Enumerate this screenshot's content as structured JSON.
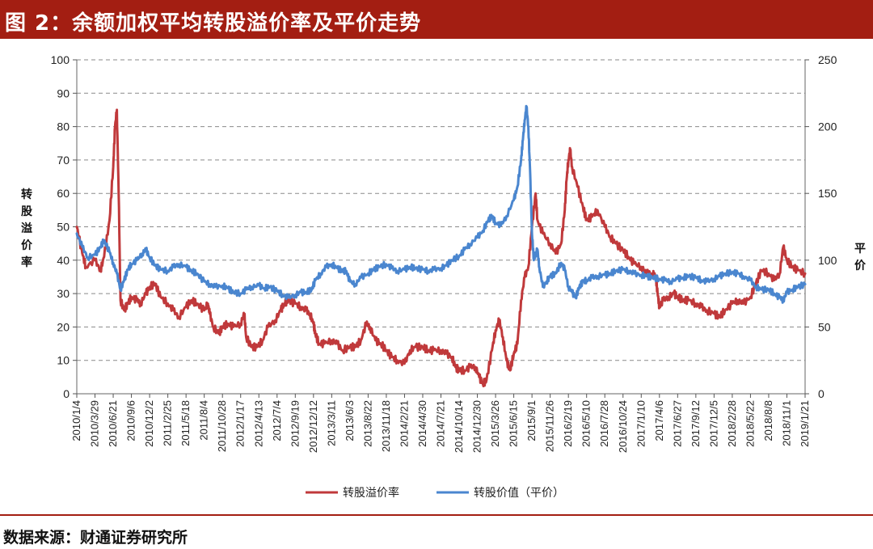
{
  "header": {
    "title": "图 2：余额加权平均转股溢价率及平价走势"
  },
  "footer": {
    "source": "数据来源：财通证券研究所"
  },
  "chart_data": {
    "type": "line",
    "title": "",
    "y_left": {
      "label": [
        "转",
        "股",
        "溢",
        "价",
        "率"
      ],
      "min": 0,
      "max": 100,
      "ticks": [
        "0",
        "10",
        "20",
        "30",
        "40",
        "50",
        "60",
        "70",
        "80",
        "90",
        "100"
      ]
    },
    "y_right": {
      "label": [
        "平",
        "价"
      ],
      "min": 0,
      "max": 250,
      "ticks": [
        "0",
        "50",
        "100",
        "150",
        "200",
        "250"
      ]
    },
    "grid": "horizontal-dashed",
    "legend_position": "bottom",
    "x_ticks": [
      "2010/1/4",
      "2010/3/29",
      "2010/6/21",
      "2010/9/6",
      "2010/12/2",
      "2011/2/25",
      "2011/5/18",
      "2011/8/4",
      "2011/10/28",
      "2012/1/17",
      "2012/4/13",
      "2012/7/4",
      "2012/9/19",
      "2012/12/12",
      "2013/3/11",
      "2013/6/3",
      "2013/8/22",
      "2013/11/18",
      "2014/2/21",
      "2014/4/30",
      "2014/7/21",
      "2014/10/14",
      "2014/12/30",
      "2015/3/26",
      "2015/6/15",
      "2015/9/1",
      "2015/11/26",
      "2016/2/19",
      "2016/5/10",
      "2016/7/28",
      "2016/10/24",
      "2017/1/10",
      "2017/4/6",
      "2017/6/27",
      "2017/9/12",
      "2017/12/5",
      "2018/2/28",
      "2018/5/22",
      "2018/8/8",
      "2018/11/1",
      "2019/1/21"
    ],
    "series": [
      {
        "name": "转股溢价率",
        "axis": "left",
        "color": "#c0393b",
        "points": [
          [
            0,
            50
          ],
          [
            0.3,
            42
          ],
          [
            0.5,
            38
          ],
          [
            1,
            40
          ],
          [
            1.3,
            37
          ],
          [
            1.5,
            41
          ],
          [
            1.8,
            52
          ],
          [
            2,
            68
          ],
          [
            2.1,
            80
          ],
          [
            2.2,
            85
          ],
          [
            2.3,
            60
          ],
          [
            2.4,
            28
          ],
          [
            2.6,
            25
          ],
          [
            2.8,
            27
          ],
          [
            3,
            29
          ],
          [
            3.3,
            28
          ],
          [
            3.5,
            27
          ],
          [
            3.8,
            30
          ],
          [
            4,
            32
          ],
          [
            4.3,
            33
          ],
          [
            4.6,
            29
          ],
          [
            5,
            27
          ],
          [
            5.3,
            25
          ],
          [
            5.6,
            23
          ],
          [
            6,
            26
          ],
          [
            6.3,
            28
          ],
          [
            6.6,
            27
          ],
          [
            7,
            25
          ],
          [
            7.2,
            27
          ],
          [
            7.3,
            24
          ],
          [
            7.5,
            20
          ],
          [
            7.8,
            18
          ],
          [
            8,
            20
          ],
          [
            8.3,
            21
          ],
          [
            8.6,
            20
          ],
          [
            9,
            21
          ],
          [
            9.2,
            24
          ],
          [
            9.3,
            17
          ],
          [
            9.6,
            14
          ],
          [
            9.9,
            14
          ],
          [
            10.2,
            16
          ],
          [
            10.5,
            20
          ],
          [
            10.9,
            22
          ],
          [
            11.2,
            25
          ],
          [
            11.4,
            27
          ],
          [
            11.6,
            28
          ],
          [
            12,
            27
          ],
          [
            12.3,
            26
          ],
          [
            12.6,
            25
          ],
          [
            12.8,
            24
          ],
          [
            13,
            21
          ],
          [
            13.1,
            18
          ],
          [
            13.3,
            15
          ],
          [
            13.6,
            15
          ],
          [
            14,
            16
          ],
          [
            14.3,
            15
          ],
          [
            14.6,
            13
          ],
          [
            15,
            14
          ],
          [
            15.3,
            14
          ],
          [
            15.6,
            16
          ],
          [
            15.9,
            21
          ],
          [
            16.1,
            20
          ],
          [
            16.4,
            16
          ],
          [
            16.7,
            15
          ],
          [
            17,
            13
          ],
          [
            17.3,
            11
          ],
          [
            17.6,
            10
          ],
          [
            18,
            9
          ],
          [
            18.3,
            13
          ],
          [
            18.6,
            14
          ],
          [
            19,
            14
          ],
          [
            19.3,
            13
          ],
          [
            19.6,
            13
          ],
          [
            20,
            13
          ],
          [
            20.3,
            12
          ],
          [
            20.6,
            11
          ],
          [
            20.8,
            8
          ],
          [
            21,
            7
          ],
          [
            21.3,
            7
          ],
          [
            21.6,
            8
          ],
          [
            21.9,
            8
          ],
          [
            22.1,
            5
          ],
          [
            22.3,
            3
          ],
          [
            22.5,
            4
          ],
          [
            22.8,
            13
          ],
          [
            23,
            19
          ],
          [
            23.2,
            22
          ],
          [
            23.4,
            17
          ],
          [
            23.6,
            10
          ],
          [
            23.8,
            7
          ],
          [
            24,
            12
          ],
          [
            24.2,
            15
          ],
          [
            24.4,
            28
          ],
          [
            24.6,
            35
          ],
          [
            24.8,
            38
          ],
          [
            25,
            50
          ],
          [
            25.2,
            60
          ],
          [
            25.3,
            52
          ],
          [
            25.6,
            48
          ],
          [
            26,
            45
          ],
          [
            26.3,
            42
          ],
          [
            26.6,
            45
          ],
          [
            26.8,
            55
          ],
          [
            26.9,
            64
          ],
          [
            27,
            70
          ],
          [
            27.1,
            73
          ],
          [
            27.2,
            68
          ],
          [
            27.5,
            62
          ],
          [
            27.8,
            56
          ],
          [
            28,
            52
          ],
          [
            28.3,
            53
          ],
          [
            28.6,
            55
          ],
          [
            29,
            50
          ],
          [
            29.3,
            47
          ],
          [
            29.6,
            45
          ],
          [
            30,
            43
          ],
          [
            30.3,
            41
          ],
          [
            30.6,
            39
          ],
          [
            31,
            38
          ],
          [
            31.3,
            36
          ],
          [
            31.6,
            36
          ],
          [
            31.8,
            35
          ],
          [
            31.9,
            30
          ],
          [
            32,
            26
          ],
          [
            32.2,
            28
          ],
          [
            32.5,
            29
          ],
          [
            32.8,
            30
          ],
          [
            33,
            29
          ],
          [
            33.3,
            28
          ],
          [
            33.6,
            28
          ],
          [
            34,
            27
          ],
          [
            34.3,
            26
          ],
          [
            34.6,
            25
          ],
          [
            35,
            24
          ],
          [
            35.3,
            23
          ],
          [
            35.6,
            25
          ],
          [
            36,
            27
          ],
          [
            36.3,
            28
          ],
          [
            36.6,
            27
          ],
          [
            37,
            29
          ],
          [
            37.3,
            33
          ],
          [
            37.6,
            37
          ],
          [
            38,
            36
          ],
          [
            38.3,
            34
          ],
          [
            38.6,
            36
          ],
          [
            38.8,
            44
          ],
          [
            39,
            40
          ],
          [
            39.3,
            38
          ],
          [
            39.6,
            37
          ],
          [
            40,
            36
          ]
        ]
      },
      {
        "name": "转股价值（平价）",
        "axis": "right",
        "color": "#4a86cf",
        "points": [
          [
            0,
            120
          ],
          [
            0.3,
            110
          ],
          [
            0.6,
            102
          ],
          [
            1,
            104
          ],
          [
            1.3,
            110
          ],
          [
            1.5,
            115
          ],
          [
            1.8,
            106
          ],
          [
            2,
            98
          ],
          [
            2.2,
            90
          ],
          [
            2.4,
            78
          ],
          [
            2.6,
            85
          ],
          [
            2.8,
            93
          ],
          [
            3,
            97
          ],
          [
            3.3,
            100
          ],
          [
            3.6,
            105
          ],
          [
            3.8,
            108
          ],
          [
            4,
            102
          ],
          [
            4.3,
            96
          ],
          [
            4.6,
            93
          ],
          [
            5,
            92
          ],
          [
            5.3,
            95
          ],
          [
            5.6,
            97
          ],
          [
            6,
            95
          ],
          [
            6.3,
            92
          ],
          [
            6.6,
            90
          ],
          [
            7,
            84
          ],
          [
            7.3,
            82
          ],
          [
            7.6,
            80
          ],
          [
            8,
            81
          ],
          [
            8.3,
            79
          ],
          [
            8.6,
            76
          ],
          [
            9,
            75
          ],
          [
            9.3,
            78
          ],
          [
            9.6,
            80
          ],
          [
            10,
            81
          ],
          [
            10.3,
            79
          ],
          [
            10.6,
            80
          ],
          [
            11,
            77
          ],
          [
            11.3,
            74
          ],
          [
            11.6,
            72
          ],
          [
            12,
            74
          ],
          [
            12.3,
            76
          ],
          [
            12.6,
            76
          ],
          [
            12.9,
            78
          ],
          [
            13.1,
            85
          ],
          [
            13.4,
            90
          ],
          [
            13.7,
            95
          ],
          [
            14,
            97
          ],
          [
            14.3,
            94
          ],
          [
            14.6,
            92
          ],
          [
            14.8,
            92
          ],
          [
            15,
            84
          ],
          [
            15.3,
            82
          ],
          [
            15.6,
            87
          ],
          [
            16,
            90
          ],
          [
            16.3,
            93
          ],
          [
            16.6,
            95
          ],
          [
            17,
            97
          ],
          [
            17.3,
            94
          ],
          [
            17.6,
            92
          ],
          [
            18,
            93
          ],
          [
            18.3,
            95
          ],
          [
            18.6,
            94
          ],
          [
            19,
            93
          ],
          [
            19.3,
            92
          ],
          [
            19.6,
            93
          ],
          [
            20,
            94
          ],
          [
            20.3,
            96
          ],
          [
            20.6,
            100
          ],
          [
            21,
            103
          ],
          [
            21.3,
            108
          ],
          [
            21.6,
            112
          ],
          [
            22,
            117
          ],
          [
            22.3,
            122
          ],
          [
            22.6,
            130
          ],
          [
            22.8,
            133
          ],
          [
            23,
            128
          ],
          [
            23.3,
            126
          ],
          [
            23.6,
            133
          ],
          [
            24,
            145
          ],
          [
            24.2,
            155
          ],
          [
            24.4,
            175
          ],
          [
            24.5,
            190
          ],
          [
            24.6,
            205
          ],
          [
            24.7,
            215
          ],
          [
            24.8,
            200
          ],
          [
            24.9,
            165
          ],
          [
            25,
            120
          ],
          [
            25.1,
            100
          ],
          [
            25.3,
            108
          ],
          [
            25.4,
            95
          ],
          [
            25.6,
            80
          ],
          [
            25.8,
            84
          ],
          [
            26,
            88
          ],
          [
            26.3,
            90
          ],
          [
            26.6,
            98
          ],
          [
            26.8,
            93
          ],
          [
            27,
            80
          ],
          [
            27.2,
            76
          ],
          [
            27.4,
            72
          ],
          [
            27.6,
            80
          ],
          [
            27.8,
            84
          ],
          [
            28,
            85
          ],
          [
            28.3,
            87
          ],
          [
            28.6,
            88
          ],
          [
            29,
            89
          ],
          [
            29.3,
            90
          ],
          [
            29.6,
            92
          ],
          [
            30,
            93
          ],
          [
            30.3,
            92
          ],
          [
            30.6,
            90
          ],
          [
            31,
            89
          ],
          [
            31.3,
            88
          ],
          [
            31.6,
            87
          ],
          [
            32,
            86
          ],
          [
            32.3,
            85
          ],
          [
            32.6,
            84
          ],
          [
            33,
            86
          ],
          [
            33.3,
            87
          ],
          [
            33.6,
            88
          ],
          [
            34,
            87
          ],
          [
            34.3,
            85
          ],
          [
            34.6,
            84
          ],
          [
            35,
            86
          ],
          [
            35.3,
            88
          ],
          [
            35.6,
            90
          ],
          [
            36,
            91
          ],
          [
            36.3,
            90
          ],
          [
            36.6,
            88
          ],
          [
            37,
            85
          ],
          [
            37.3,
            80
          ],
          [
            37.6,
            78
          ],
          [
            38,
            78
          ],
          [
            38.3,
            75
          ],
          [
            38.6,
            72
          ],
          [
            38.8,
            70
          ],
          [
            39,
            76
          ],
          [
            39.3,
            78
          ],
          [
            39.6,
            80
          ],
          [
            40,
            82
          ]
        ]
      }
    ]
  }
}
